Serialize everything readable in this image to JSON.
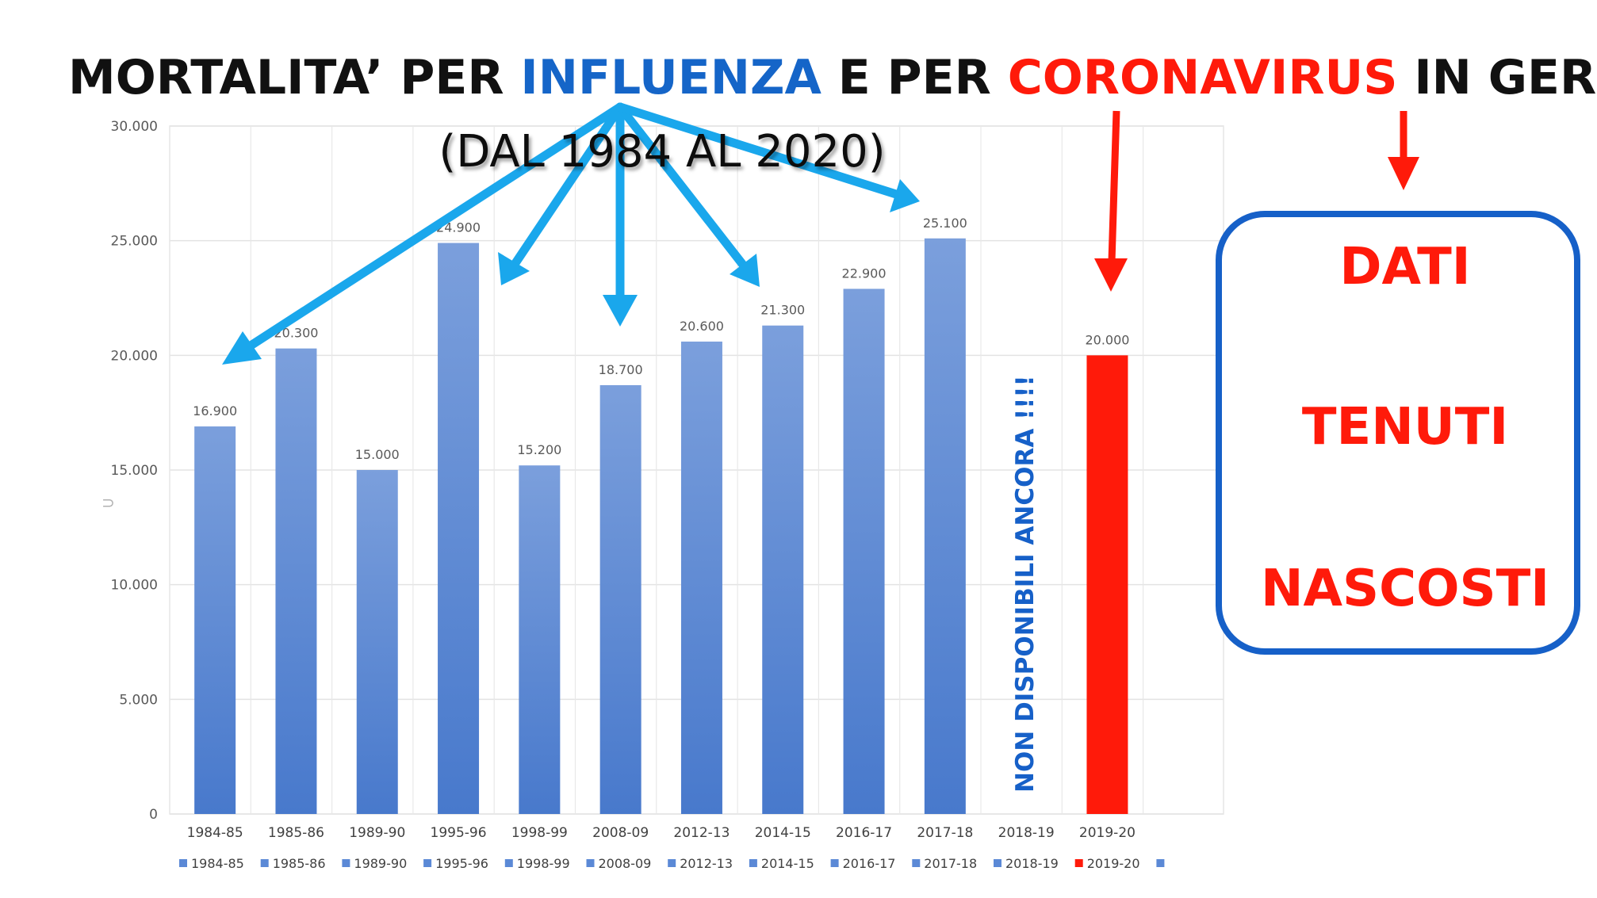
{
  "title": {
    "part1": "MORTALITA’ PER ",
    "part2": "INFLUENZA",
    "part3": " E PER ",
    "part4": "CORONAVIRUS",
    "part5": " IN GERMANIA"
  },
  "subtitle": "(DAL 1984 AL 2020)",
  "side_box": {
    "line1": "DATI",
    "line2": "TENUTI",
    "line3": "NASCOSTI"
  },
  "note_vertical": "NON DISPONIBILI ANCORA !!!!",
  "colors": {
    "bar_blue": "#5B89D6",
    "bar_red": "#FF1A0A",
    "title_black": "#111111",
    "title_blue": "#1565C8",
    "title_red": "#FF1A0A",
    "arrow_cyan": "#1AA7EC",
    "box_border": "#1660C8",
    "note_blue": "#1660C8"
  },
  "chart_data": {
    "type": "bar",
    "categories": [
      "1984-85",
      "1985-86",
      "1989-90",
      "1995-96",
      "1998-99",
      "2008-09",
      "2012-13",
      "2014-15",
      "2016-17",
      "2017-18",
      "2018-19",
      "2019-20"
    ],
    "values": [
      16900,
      20300,
      15000,
      24900,
      15200,
      18700,
      20600,
      21300,
      22900,
      25100,
      null,
      20000
    ],
    "data_labels": [
      "16.900",
      "20.300",
      "15.000",
      "24.900",
      "15.200",
      "18.700",
      "20.600",
      "21.300",
      "22.900",
      "25.100",
      "",
      "20.000"
    ],
    "bar_colors": [
      "blue",
      "blue",
      "blue",
      "blue",
      "blue",
      "blue",
      "blue",
      "blue",
      "blue",
      "blue",
      "blue",
      "red"
    ],
    "ylim": [
      0,
      30000
    ],
    "yticks": [
      0,
      5000,
      10000,
      15000,
      20000,
      25000,
      30000
    ],
    "ytick_labels": [
      "0",
      "5.000",
      "10.000",
      "15.000",
      "20.000",
      "25.000",
      "30.000"
    ],
    "grid": true,
    "legend": [
      "1984-85",
      "1985-86",
      "1989-90",
      "1995-96",
      "1998-99",
      "2008-09",
      "2012-13",
      "2014-15",
      "2016-17",
      "2017-18",
      "2018-19",
      "2019-20",
      ""
    ],
    "legend_colors": [
      "blue",
      "blue",
      "blue",
      "blue",
      "blue",
      "blue",
      "blue",
      "blue",
      "blue",
      "blue",
      "blue",
      "red",
      "blue"
    ],
    "legend_position": "bottom"
  }
}
